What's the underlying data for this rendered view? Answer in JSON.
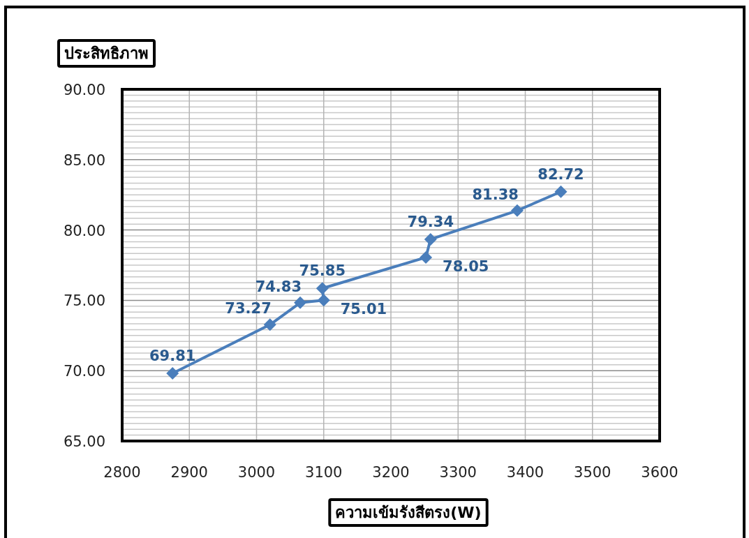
{
  "chart_data": {
    "type": "line",
    "xlabel": "ความเข้มรังสีตรง(W)",
    "ylabel": "ประสิทธิภาพ",
    "x": [
      2875,
      3020,
      3065,
      3100,
      3098,
      3252,
      3259,
      3388,
      3453
    ],
    "values": [
      69.81,
      73.27,
      74.83,
      75.01,
      75.85,
      78.05,
      79.34,
      81.38,
      82.72
    ],
    "color": "#4a7ebb",
    "marker": "diamond",
    "line_style": "solid",
    "data_labels": true,
    "grid": true,
    "xlim": [
      2800,
      3600
    ],
    "xticks": [
      2800,
      2900,
      3000,
      3100,
      3200,
      3300,
      3400,
      3500,
      3600
    ],
    "ylim": [
      65,
      90
    ],
    "yticks": [
      {
        "value": 65,
        "label": "65.00"
      },
      {
        "value": 70,
        "label": "70.00"
      },
      {
        "value": 75,
        "label": "75.00"
      },
      {
        "value": 80,
        "label": "80.00"
      },
      {
        "value": 85,
        "label": "85.00"
      },
      {
        "value": 90,
        "label": "90.00"
      }
    ]
  }
}
